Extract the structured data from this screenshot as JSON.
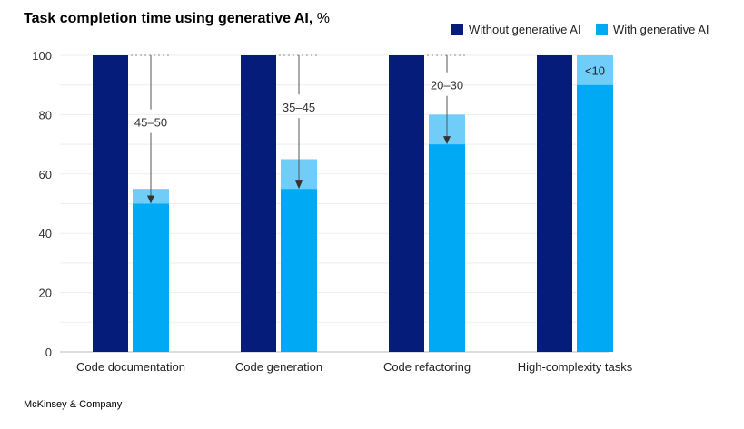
{
  "title": "Task completion time using generative AI,",
  "title_unit": "%",
  "source": "McKinsey & Company",
  "chart_data": {
    "type": "bar",
    "categories": [
      "Code documentation",
      "Code generation",
      "Code refactoring",
      "High-complexity tasks"
    ],
    "ylim": [
      0,
      100
    ],
    "yticks": [
      0,
      20,
      40,
      60,
      80,
      100
    ],
    "grid": true,
    "legend_position": "top-right",
    "series": [
      {
        "name": "Without generative AI",
        "color": "#051c7a",
        "values": [
          100,
          100,
          100,
          100
        ]
      },
      {
        "name": "With generative AI",
        "color": "#00a9f4",
        "range_color": "#6fcdf7",
        "low": [
          50,
          55,
          70,
          90
        ],
        "high": [
          55,
          65,
          80,
          100
        ]
      }
    ],
    "annotations": [
      "45–50",
      "35–45",
      "20–30",
      "<10"
    ]
  }
}
